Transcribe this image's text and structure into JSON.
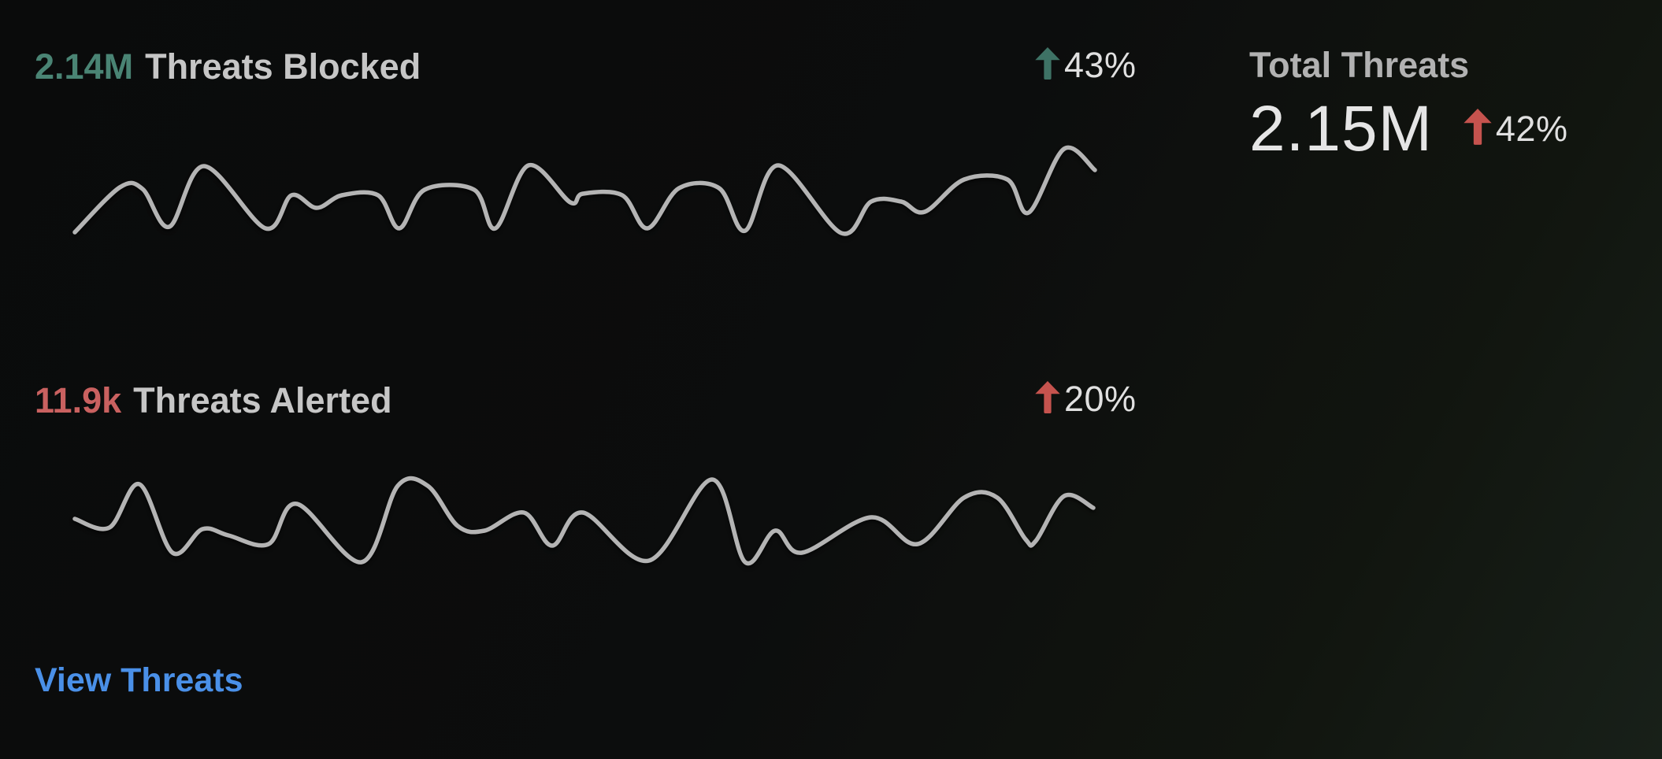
{
  "theme": {
    "background_start": "#0a0b0b",
    "background_end": "#182019",
    "title_text": "#c6c6c6",
    "muted_text": "#b2b2b2",
    "bright_text": "#e5e5e5",
    "percent_text": "#e0e0e0",
    "sparkline_color": "#b4b4b4",
    "teal_value": "#4a8474",
    "teal_arrow": "#3e7265",
    "red_value": "#c96160",
    "red_arrow": "#c5534e",
    "link_blue": "#4a90e8"
  },
  "metrics": {
    "blocked": {
      "value": "2.14M",
      "label": "Threats Blocked",
      "change_percent": "43%",
      "trend": "up"
    },
    "alerted": {
      "value": "11.9k",
      "label": "Threats Alerted",
      "change_percent": "20%",
      "trend": "up"
    },
    "total": {
      "label": "Total Threats",
      "value": "2.15M",
      "change_percent": "42%",
      "trend": "up"
    }
  },
  "link": {
    "label": "View Threats"
  },
  "chart_data": [
    {
      "type": "line",
      "name": "threats-blocked-sparkline",
      "title": "Threats Blocked trend",
      "color": "#b4b4b4",
      "axes": false,
      "x_range": [
        0,
        1300
      ],
      "y_range": [
        0,
        120
      ],
      "y_inverted": true,
      "points": [
        [
          0,
          110
        ],
        [
          57,
          53
        ],
        [
          86,
          55
        ],
        [
          120,
          103
        ],
        [
          164,
          26
        ],
        [
          242,
          105
        ],
        [
          275,
          63
        ],
        [
          307,
          79
        ],
        [
          339,
          63
        ],
        [
          385,
          63
        ],
        [
          412,
          105
        ],
        [
          444,
          56
        ],
        [
          507,
          56
        ],
        [
          534,
          105
        ],
        [
          576,
          25
        ],
        [
          629,
          72
        ],
        [
          645,
          61
        ],
        [
          695,
          63
        ],
        [
          727,
          105
        ],
        [
          767,
          54
        ],
        [
          818,
          54
        ],
        [
          851,
          108
        ],
        [
          893,
          25
        ],
        [
          973,
          111
        ],
        [
          1011,
          71
        ],
        [
          1049,
          71
        ],
        [
          1079,
          84
        ],
        [
          1129,
          43
        ],
        [
          1184,
          43
        ],
        [
          1211,
          85
        ],
        [
          1256,
          4
        ],
        [
          1295,
          31
        ]
      ]
    },
    {
      "type": "line",
      "name": "threats-alerted-sparkline",
      "title": "Threats Alerted trend",
      "color": "#b4b4b4",
      "axes": false,
      "x_range": [
        0,
        1300
      ],
      "y_range": [
        0,
        130
      ],
      "y_inverted": true,
      "points": [
        [
          0,
          64
        ],
        [
          44,
          75
        ],
        [
          82,
          20
        ],
        [
          124,
          107
        ],
        [
          162,
          77
        ],
        [
          195,
          85
        ],
        [
          246,
          96
        ],
        [
          282,
          45
        ],
        [
          364,
          119
        ],
        [
          410,
          22
        ],
        [
          448,
          22
        ],
        [
          486,
          73
        ],
        [
          520,
          79
        ],
        [
          570,
          56
        ],
        [
          606,
          98
        ],
        [
          645,
          56
        ],
        [
          729,
          117
        ],
        [
          809,
          14
        ],
        [
          851,
          119
        ],
        [
          889,
          79
        ],
        [
          923,
          107
        ],
        [
          1011,
          62
        ],
        [
          1070,
          96
        ],
        [
          1129,
          37
        ],
        [
          1171,
          37
        ],
        [
          1207,
          90
        ],
        [
          1220,
          92
        ],
        [
          1256,
          35
        ],
        [
          1293,
          50
        ]
      ]
    }
  ]
}
